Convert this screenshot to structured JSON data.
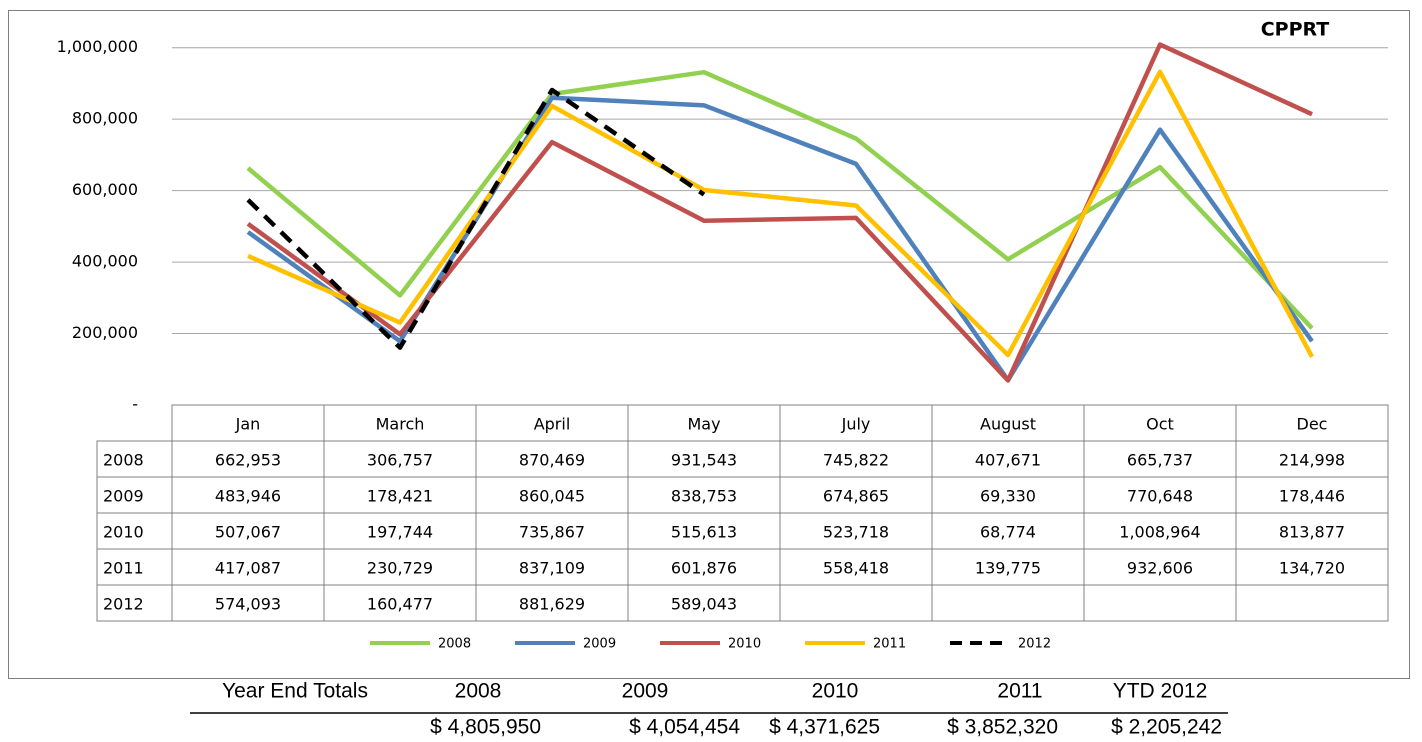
{
  "chart_data": {
    "type": "line",
    "title": "CPPRT",
    "categories": [
      "Jan",
      "March",
      "April",
      "May",
      "July",
      "August",
      "Oct",
      "Dec"
    ],
    "series": [
      {
        "name": "2008",
        "color": "#92d050",
        "values": [
          662953,
          306757,
          870469,
          931543,
          745822,
          407671,
          665737,
          214998
        ],
        "value_labels": [
          "662,953",
          "306,757",
          "870,469",
          "931,543",
          "745,822",
          "407,671",
          "665,737",
          "214,998"
        ]
      },
      {
        "name": "2009",
        "color": "#4f81bd",
        "values": [
          483946,
          178421,
          860045,
          838753,
          674865,
          69330,
          770648,
          178446
        ],
        "value_labels": [
          "483,946",
          "178,421",
          "860,045",
          "838,753",
          "674,865",
          "69,330",
          "770,648",
          "178,446"
        ]
      },
      {
        "name": "2010",
        "color": "#c0504d",
        "values": [
          507067,
          197744,
          735867,
          515613,
          523718,
          68774,
          1008964,
          813877
        ],
        "value_labels": [
          "507,067",
          "197,744",
          "735,867",
          "515,613",
          "523,718",
          "68,774",
          "1,008,964",
          "813,877"
        ]
      },
      {
        "name": "2011",
        "color": "#ffc000",
        "values": [
          417087,
          230729,
          837109,
          601876,
          558418,
          139775,
          932606,
          134720
        ],
        "value_labels": [
          "417,087",
          "230,729",
          "837,109",
          "601,876",
          "558,418",
          "139,775",
          "932,606",
          "134,720"
        ]
      },
      {
        "name": "2012",
        "color": "#000000",
        "dashed": true,
        "values": [
          574093,
          160477,
          881629,
          589043,
          null,
          null,
          null,
          null
        ],
        "value_labels": [
          "574,093",
          "160,477",
          "881,629",
          "589,043",
          null,
          null,
          null,
          null
        ]
      }
    ],
    "ylim": [
      0,
      1100000
    ],
    "yticks": [
      {
        "value": 0,
        "label": "-"
      },
      {
        "value": 200000,
        "label": "200,000"
      },
      {
        "value": 400000,
        "label": "400,000"
      },
      {
        "value": 600000,
        "label": "600,000"
      },
      {
        "value": 800000,
        "label": "800,000"
      },
      {
        "value": 1000000,
        "label": "1,000,000"
      }
    ],
    "grid": true
  },
  "year_end_totals": {
    "label": "Year End Totals",
    "headers": [
      "2008",
      "2009",
      "2010",
      "2011",
      "YTD 2012"
    ],
    "values": [
      "$ 4,805,950",
      "$ 4,054,454",
      "$ 4,371,625",
      "$ 3,852,320",
      "$ 2,205,242"
    ]
  }
}
